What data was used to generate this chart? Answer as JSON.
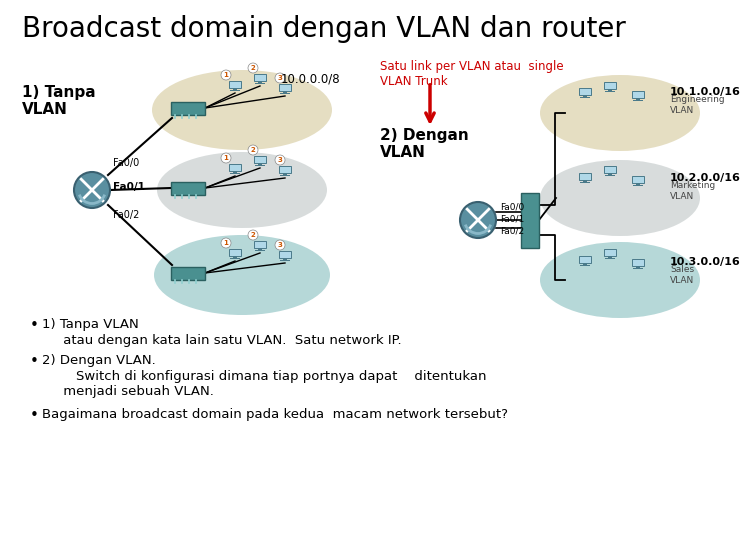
{
  "title": "Broadcast domain dengan VLAN dan router",
  "bg_color": "#ffffff",
  "title_color": "#000000",
  "title_fontsize": 20,
  "label_tanpa": "1) Tanpa\nVLAN",
  "label_dengan": "2) Dengan\nVLAN",
  "ip_single": "10.0.0.0/8",
  "ip_eng": "10.1.0.0/16",
  "ip_mkt": "10.2.0.0/16",
  "ip_sales": "10.3.0.0/16",
  "eng_label": "Engineering\nVLAN",
  "mkt_label": "Marketing\nVLAN",
  "sales_label": "Sales\nVLAN",
  "fa00": "Fa0/0",
  "fa01": "Fa0/1",
  "fa02": "Fa0/2",
  "trunk_label": "Satu link per VLAN atau  single\nVLAN Trunk",
  "bullet1a": "1) Tanpa VLAN",
  "bullet1b": "     atau dengan kata lain satu VLAN.  Satu network IP.",
  "bullet2a": "2) Dengan VLAN.",
  "bullet2b": "        Switch di konfigurasi dimana tiap portnya dapat    ditentukan\n     menjadi sebuah VLAN.",
  "bullet3": "Bagaimana broadcast domain pada kedua  macam network tersebut?",
  "cloud_tan_color": "#d4c89a",
  "cloud_gray_color": "#b8c0c0",
  "cloud_teal_color": "#7ab8b8",
  "router_color": "#5a8fa0",
  "switch_color": "#4a9090",
  "line_color": "#000000",
  "red_arrow": "#cc0000",
  "text_red": "#cc0000",
  "pc_screen": "#b0d8e8",
  "pc_body": "#4a7a8a"
}
